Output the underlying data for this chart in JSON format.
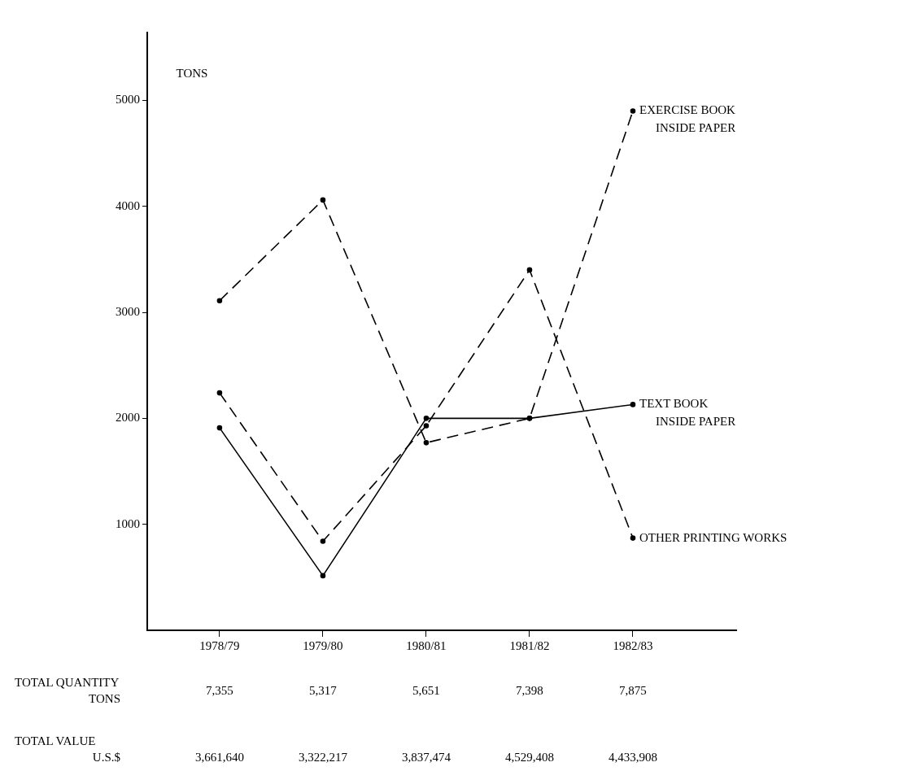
{
  "chart_data": {
    "type": "line",
    "ylabel": "TONS",
    "categories": [
      "1978/79",
      "1979/80",
      "1980/81",
      "1981/82",
      "1982/83"
    ],
    "series": [
      {
        "name": "EXERCISE BOOK\nINSIDE PAPER",
        "color": "#000000",
        "line_style": "dashed",
        "values": [
          3110,
          4060,
          1770,
          2000,
          4900
        ]
      },
      {
        "name": "TEXT BOOK\nINSIDE PAPER",
        "color": "#000000",
        "line_style": "solid",
        "values": [
          1910,
          515,
          2000,
          2000,
          2130
        ]
      },
      {
        "name": "OTHER PRINTING WORKS",
        "color": "#000000",
        "line_style": "dashed",
        "values": [
          2240,
          840,
          1930,
          3400,
          870
        ]
      }
    ],
    "ylim": [
      0,
      5640
    ],
    "yticks": [
      1000,
      2000,
      3000,
      4000,
      5000
    ],
    "grid": false,
    "legend": false,
    "marker": "circle",
    "annotations": [
      "TOTAL QUANTITY\nTONS",
      "7,355",
      "5,317",
      "5,651",
      "7,398",
      "7,875",
      "TOTAL VALUE\nU.S.$",
      "3,661,640",
      "3,322,217",
      "3,837,474",
      "4,529,408",
      "4,433,908"
    ]
  }
}
